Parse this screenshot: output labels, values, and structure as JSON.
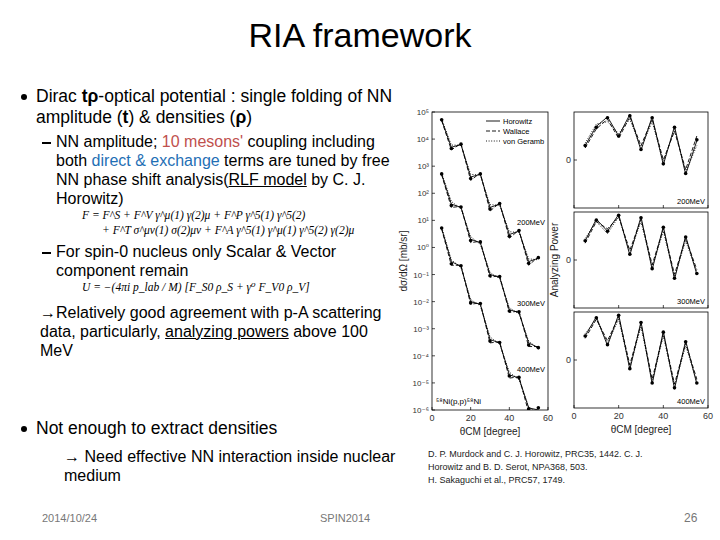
{
  "header": {
    "title": "RIA framework"
  },
  "bullets": [
    {
      "segments": [
        {
          "text": "Dirac "
        },
        {
          "text": "tρ",
          "style": "bold"
        },
        {
          "text": "-optical potential : single folding of NN amplitude ("
        },
        {
          "text": "t",
          "style": "bold"
        },
        {
          "text": ") & densities ("
        },
        {
          "text": "ρ",
          "style": "bold"
        },
        {
          "text": ")"
        }
      ],
      "items": [
        {
          "segments": [
            {
              "text": "NN amplitude; "
            },
            {
              "text": "10 mesons'",
              "color": "#c0504d"
            },
            {
              "text": " coupling including both "
            },
            {
              "text": "direct & exchange",
              "color": "#1f6fb5"
            },
            {
              "text": " terms are tuned by free NN phase shift analysis("
            },
            {
              "text": "RLF model",
              "style": "underline"
            },
            {
              "text": " by C. J. Horowitz)"
            }
          ],
          "equation": [
            "F = F^S + F^V γ^μ(1) γ(2)μ + F^P γ^5(1) γ^5(2)",
            "+ F^T σ^μν(1) σ(2)μν + F^A γ^5(1) γ^μ(1) γ^5(2) γ(2)μ"
          ]
        },
        {
          "segments": [
            {
              "text": "For spin-0 nucleus only Scalar & Vector component remain"
            }
          ],
          "equation": [
            "U = −(4πi p_lab / M) [F_S0 ρ_S + γ⁰ F_V0 ρ_V]"
          ]
        }
      ],
      "conclusion": {
        "segments": [
          {
            "text": "→Relatively good agreement with p-A scattering data, particularly, "
          },
          {
            "text": "analyzing powers",
            "style": "underline"
          },
          {
            "text": " above 100 MeV"
          }
        ]
      }
    },
    {
      "segments": [
        {
          "text": "Not enough to extract densities"
        }
      ],
      "conclusion": {
        "segments": [
          {
            "text": "→ Need effective NN interaction inside nuclear medium"
          }
        ]
      }
    }
  ],
  "references": [
    "D. P. Murdock and C. J. Horowitz, PRC35, 1442. C. J.",
    "Horowitz and B. D. Serot, NPA368, 503.",
    "H. Sakaguchi et al., PRC57, 1749."
  ],
  "footer": {
    "date": "2014/10/24",
    "event": "SPIN2014",
    "page": "26"
  },
  "chart_data": [
    {
      "type": "line",
      "log": "y",
      "ylabel": "dσ/dΩ [mb/sr]",
      "xlabel": "θCM [degree]",
      "caption": "⁵⁸Ni(p,p)⁵⁸Ni",
      "annotations": [
        "200MeV",
        "300MeV",
        "400MeV"
      ],
      "legend": "upper right",
      "x": [
        5,
        10,
        15,
        20,
        25,
        30,
        35,
        40,
        45,
        50,
        55
      ],
      "xlim": [
        0,
        60
      ],
      "xticks": [
        0,
        20,
        40,
        60
      ],
      "ylim": [
        1e-06,
        100000
      ],
      "yticks": [
        {
          "value": 100000,
          "label": "10⁵"
        },
        {
          "value": 10000,
          "label": "10⁴"
        },
        {
          "value": 1000,
          "label": "10³"
        },
        {
          "value": 100,
          "label": "10²"
        },
        {
          "value": 10,
          "label": "10¹"
        },
        {
          "value": 1,
          "label": "10⁰"
        },
        {
          "value": 0.1,
          "label": "10⁻¹"
        },
        {
          "value": 0.01,
          "label": "10⁻²"
        },
        {
          "value": 0.001,
          "label": "10⁻³"
        },
        {
          "value": 0.0001,
          "label": "10⁻⁴"
        },
        {
          "value": 1e-05,
          "label": "10⁻⁵"
        },
        {
          "value": 1e-06,
          "label": "10⁻⁶"
        }
      ],
      "series": [
        {
          "name": "Horowitz",
          "line_style": "solid",
          "values": [
            50000,
            5000,
            6300,
            400,
            500,
            30,
            40,
            3,
            4,
            0.3,
            0.4
          ]
        },
        {
          "name": "Wallace",
          "line_style": "dashed",
          "values": [
            48000,
            4000,
            6800,
            300,
            560,
            22,
            44,
            2.2,
            4.4,
            0.22,
            0.45
          ]
        },
        {
          "name": "von Geramb",
          "line_style": "dotted",
          "values": [
            56000,
            6000,
            6000,
            500,
            470,
            38,
            36,
            3.8,
            3.6,
            0.38,
            0.35
          ]
        },
        {
          "type": "scatter",
          "marker": "circle",
          "values": [
            52000,
            4500,
            6500,
            350,
            520,
            26,
            42,
            2.6,
            4.2,
            0.26,
            0.42
          ]
        },
        {
          "line_style": "solid",
          "values": [
            500,
            40,
            30,
            2,
            1.5,
            0.1,
            0.08,
            0.005,
            0.004,
            0.0003,
            0.0002
          ]
        },
        {
          "line_style": "dashed",
          "values": [
            480,
            30,
            33,
            1.5,
            1.7,
            0.08,
            0.09,
            0.004,
            0.0045,
            0.00022,
            0.00022
          ]
        },
        {
          "line_style": "dotted",
          "values": [
            560,
            50,
            27,
            2.5,
            1.3,
            0.12,
            0.07,
            0.006,
            0.0035,
            0.00035,
            0.00018
          ]
        },
        {
          "type": "scatter",
          "marker": "circle",
          "values": [
            520,
            35,
            31,
            1.8,
            1.6,
            0.09,
            0.085,
            0.0045,
            0.0042,
            0.00025,
            0.0002
          ]
        },
        {
          "line_style": "solid",
          "values": [
            5,
            0.3,
            0.2,
            0.01,
            0.008,
            0.0004,
            0.0003,
            2e-05,
            1.5e-05,
            1.2e-06,
            1e-06
          ]
        },
        {
          "line_style": "dashed",
          "values": [
            4.8,
            0.22,
            0.22,
            0.008,
            0.009,
            0.0003,
            0.00033,
            1.5e-05,
            1.7e-05,
            8e-07,
            9e-07
          ]
        },
        {
          "line_style": "dotted",
          "values": [
            5.6,
            0.35,
            0.18,
            0.012,
            0.007,
            0.0005,
            0.00027,
            2.5e-05,
            1.3e-05,
            1.3e-06,
            7e-07
          ]
        },
        {
          "type": "scatter",
          "marker": "circle",
          "values": [
            5.2,
            0.25,
            0.21,
            0.009,
            0.0085,
            0.00035,
            0.00031,
            1.8e-05,
            1.6e-05,
            1.1e-06,
            1.2e-06
          ]
        }
      ]
    },
    {
      "type": "line",
      "title": "200MeV",
      "tick_labels": "y",
      "x": [
        5,
        10,
        15,
        20,
        25,
        30,
        35,
        40,
        45,
        50,
        55
      ],
      "xlim": [
        0,
        60
      ],
      "xticks": [
        0,
        20,
        40,
        60
      ],
      "ylim": [
        -1,
        1
      ],
      "yticks": [
        0
      ],
      "series": [
        {
          "line_style": "solid",
          "values": [
            0.3,
            0.7,
            0.9,
            0.5,
            0.95,
            0.2,
            0.9,
            -0.1,
            0.7,
            -0.3,
            0.4
          ]
        },
        {
          "line_style": "dashed",
          "values": [
            0.25,
            0.65,
            0.85,
            0.45,
            0.9,
            0.3,
            0.85,
            0.0,
            0.6,
            -0.2,
            0.5
          ]
        },
        {
          "line_style": "dotted",
          "values": [
            0.35,
            0.75,
            0.8,
            0.55,
            0.85,
            0.25,
            0.8,
            -0.05,
            0.65,
            -0.25,
            0.3
          ]
        },
        {
          "type": "scatter",
          "marker": "circle",
          "values": [
            0.3,
            0.68,
            0.88,
            0.5,
            0.92,
            0.22,
            0.88,
            -0.08,
            0.68,
            -0.28,
            0.42
          ]
        }
      ]
    },
    {
      "type": "line",
      "title": "300MeV",
      "ylabel": "Analyzing Power",
      "tick_labels": "y",
      "x": [
        5,
        10,
        15,
        20,
        25,
        30,
        35,
        40,
        45,
        50,
        55
      ],
      "xlim": [
        0,
        60
      ],
      "xticks": [
        0,
        20,
        40,
        60
      ],
      "ylim": [
        -1,
        1
      ],
      "yticks": [
        0
      ],
      "series": [
        {
          "line_style": "solid",
          "values": [
            0.4,
            0.85,
            0.6,
            0.95,
            0.1,
            0.9,
            -0.2,
            0.7,
            -0.4,
            0.5,
            -0.3
          ]
        },
        {
          "line_style": "dashed",
          "values": [
            0.35,
            0.8,
            0.65,
            0.9,
            0.2,
            0.85,
            -0.1,
            0.65,
            -0.3,
            0.45,
            -0.2
          ]
        },
        {
          "line_style": "dotted",
          "values": [
            0.45,
            0.8,
            0.55,
            0.9,
            0.15,
            0.8,
            -0.15,
            0.6,
            -0.35,
            0.4,
            -0.25
          ]
        },
        {
          "type": "scatter",
          "marker": "circle",
          "values": [
            0.4,
            0.83,
            0.6,
            0.93,
            0.12,
            0.88,
            -0.18,
            0.68,
            -0.38,
            0.48,
            -0.28
          ]
        }
      ]
    },
    {
      "type": "line",
      "title": "400MeV",
      "xlabel": "θCM [degree]",
      "x": [
        5,
        10,
        15,
        20,
        25,
        30,
        35,
        40,
        45,
        50,
        55
      ],
      "xlim": [
        0,
        60
      ],
      "xticks": [
        0,
        20,
        40,
        60
      ],
      "ylim": [
        -1,
        1
      ],
      "yticks": [
        0
      ],
      "series": [
        {
          "line_style": "solid",
          "values": [
            0.5,
            0.9,
            0.3,
            0.95,
            -0.2,
            0.8,
            -0.5,
            0.6,
            -0.6,
            0.4,
            -0.5
          ]
        },
        {
          "line_style": "dashed",
          "values": [
            0.45,
            0.85,
            0.4,
            0.9,
            -0.1,
            0.75,
            -0.4,
            0.55,
            -0.5,
            0.35,
            -0.4
          ]
        },
        {
          "line_style": "dotted",
          "values": [
            0.55,
            0.85,
            0.35,
            0.85,
            -0.15,
            0.7,
            -0.45,
            0.5,
            -0.55,
            0.3,
            -0.45
          ]
        },
        {
          "type": "scatter",
          "marker": "circle",
          "values": [
            0.5,
            0.88,
            0.32,
            0.93,
            -0.18,
            0.78,
            -0.48,
            0.58,
            -0.58,
            0.38,
            -0.48
          ]
        }
      ]
    }
  ]
}
